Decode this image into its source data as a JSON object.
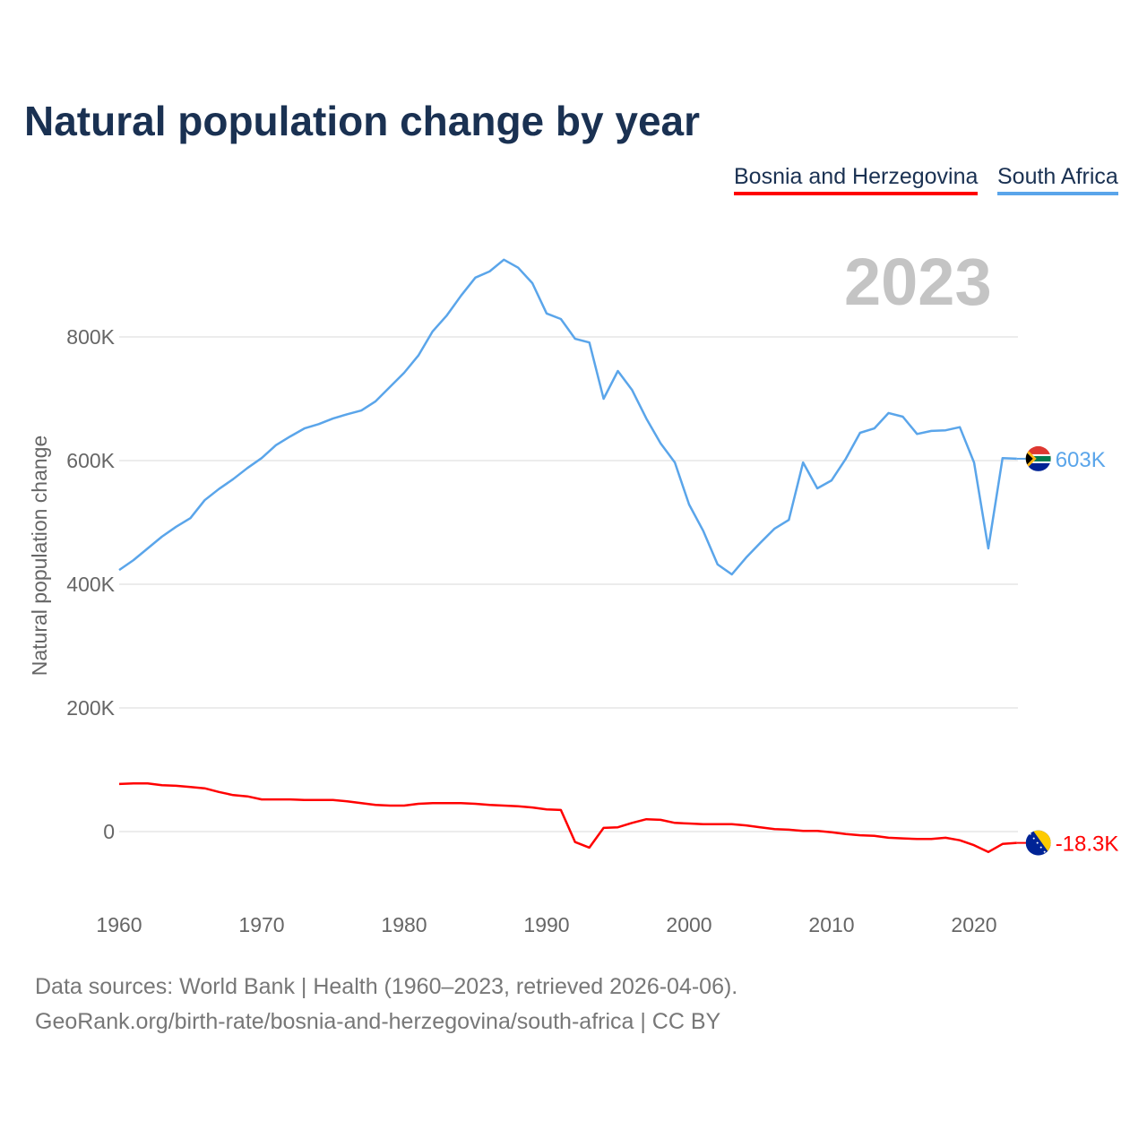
{
  "title": "Natural population change by year",
  "year_label": "2023",
  "footer": {
    "line1": "Data sources: World Bank | Health (1960–2023, retrieved 2026-04-06).",
    "line2": "GeoRank.org/birth-rate/bosnia-and-herzegovina/south-africa | CC BY"
  },
  "chart_data": {
    "type": "line",
    "title": "Natural population change by year",
    "xlabel": "",
    "ylabel": "Natural population change",
    "xlim": [
      1960,
      2023
    ],
    "ylim": [
      -90000,
      1000000
    ],
    "x_ticks": [
      1960,
      1970,
      1980,
      1990,
      2000,
      2010,
      2020
    ],
    "x_tick_labels": [
      "1960",
      "1970",
      "1980",
      "1990",
      "2000",
      "2010",
      "2020"
    ],
    "y_ticks": [
      0,
      200000,
      400000,
      600000,
      800000
    ],
    "y_tick_labels": [
      "0",
      "200K",
      "400K",
      "600K",
      "800K"
    ],
    "grid": true,
    "legend_position": "top-right",
    "x_start": 1960,
    "series": [
      {
        "name": "Bosnia and Herzegovina",
        "color": "#ff0000",
        "end_label": "-18.3K",
        "flag": "bosnia-flag",
        "values": [
          77000,
          78000,
          78000,
          75000,
          74000,
          72000,
          70000,
          64000,
          59000,
          57000,
          52000,
          52000,
          52000,
          51000,
          51000,
          51000,
          49000,
          46000,
          43000,
          42000,
          42000,
          45000,
          46000,
          46000,
          46000,
          45000,
          43000,
          42000,
          41000,
          39000,
          36000,
          35000,
          -17000,
          -26000,
          6000,
          7000,
          14000,
          20000,
          19000,
          14000,
          13000,
          12000,
          12000,
          12000,
          10000,
          7000,
          4000,
          3000,
          1000,
          1000,
          -1000,
          -4000,
          -6000,
          -7000,
          -10000,
          -11000,
          -12000,
          -12000,
          -10000,
          -14000,
          -22000,
          -33000,
          -20000,
          -18300
        ]
      },
      {
        "name": "South Africa",
        "color": "#5aa5ea",
        "end_label": "603K",
        "flag": "south-africa-flag",
        "values": [
          423000,
          439000,
          458000,
          477000,
          493000,
          507000,
          536000,
          554000,
          570000,
          588000,
          604000,
          625000,
          639000,
          652000,
          659000,
          668000,
          675000,
          681000,
          696000,
          719000,
          742000,
          770000,
          809000,
          835000,
          867000,
          896000,
          906000,
          925000,
          912000,
          887000,
          838000,
          829000,
          797000,
          791000,
          700000,
          745000,
          714000,
          668000,
          628000,
          597000,
          529000,
          486000,
          432000,
          416000,
          443000,
          467000,
          490000,
          504000,
          597000,
          555000,
          568000,
          603000,
          645000,
          652000,
          677000,
          671000,
          643000,
          648000,
          649000,
          654000,
          597000,
          458000,
          604000,
          603000
        ]
      }
    ]
  }
}
